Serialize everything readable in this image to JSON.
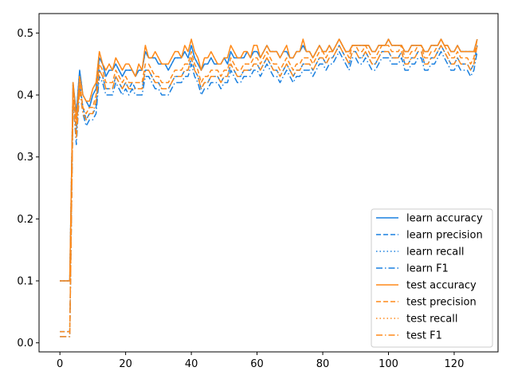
{
  "chart_data": {
    "type": "line",
    "title": "",
    "xlabel": "",
    "ylabel": "",
    "xlim": [
      -6.35,
      133.35
    ],
    "ylim": [
      -0.0146,
      0.5314
    ],
    "xticks": [
      0,
      20,
      40,
      60,
      80,
      100,
      120
    ],
    "yticks": [
      0.0,
      0.1,
      0.2,
      0.3,
      0.4,
      0.5
    ],
    "xtick_labels": [
      "0",
      "20",
      "40",
      "60",
      "80",
      "100",
      "120"
    ],
    "ytick_labels": [
      "0.0",
      "0.1",
      "0.2",
      "0.3",
      "0.4",
      "0.5"
    ],
    "grid": false,
    "legend_position": "lower-right",
    "colors": {
      "learn": "#1f77b4",
      "test": "#ff7f0e",
      "learn_display": "#1a80e0",
      "test_display": "#ff8a1a"
    },
    "series": [
      {
        "name": "learn accuracy",
        "group": "learn",
        "style": "solid",
        "values": [
          0.1,
          0.1,
          0.1,
          0.1,
          0.42,
          0.37,
          0.44,
          0.4,
          0.39,
          0.38,
          0.4,
          0.41,
          0.46,
          0.45,
          0.43,
          0.44,
          0.44,
          0.45,
          0.44,
          0.43,
          0.44,
          0.44,
          0.44,
          0.43,
          0.44,
          0.44,
          0.47,
          0.46,
          0.46,
          0.46,
          0.45,
          0.45,
          0.45,
          0.44,
          0.45,
          0.46,
          0.46,
          0.46,
          0.47,
          0.46,
          0.48,
          0.46,
          0.45,
          0.44,
          0.45,
          0.45,
          0.46,
          0.45,
          0.45,
          0.45,
          0.46,
          0.45,
          0.47,
          0.46,
          0.46,
          0.46,
          0.46,
          0.47,
          0.46,
          0.47,
          0.47,
          0.46,
          0.47,
          0.48,
          0.47,
          0.47,
          0.47,
          0.46,
          0.47,
          0.47,
          0.46,
          0.46,
          0.47,
          0.47,
          0.48,
          0.47,
          0.47,
          0.46,
          0.47,
          0.48,
          0.47,
          0.47,
          0.48,
          0.47,
          0.48,
          0.49,
          0.48,
          0.47,
          0.47,
          0.48,
          0.48,
          0.48,
          0.48,
          0.48,
          0.48,
          0.47,
          0.47,
          0.48,
          0.48,
          0.48,
          0.49,
          0.48,
          0.48,
          0.48,
          0.48,
          0.47,
          0.47,
          0.48,
          0.48,
          0.48,
          0.48,
          0.47,
          0.47,
          0.48,
          0.48,
          0.48,
          0.49,
          0.48,
          0.48,
          0.47,
          0.47,
          0.48,
          0.47,
          0.47,
          0.47,
          0.47,
          0.47,
          0.49
        ]
      },
      {
        "name": "learn precision",
        "group": "learn",
        "style": "dashed",
        "values": [
          0.018,
          0.018,
          0.018,
          0.018,
          0.4,
          0.34,
          0.42,
          0.38,
          0.36,
          0.37,
          0.37,
          0.38,
          0.44,
          0.43,
          0.41,
          0.41,
          0.41,
          0.43,
          0.42,
          0.41,
          0.42,
          0.41,
          0.42,
          0.41,
          0.41,
          0.41,
          0.44,
          0.44,
          0.43,
          0.42,
          0.42,
          0.41,
          0.41,
          0.41,
          0.42,
          0.43,
          0.43,
          0.43,
          0.44,
          0.44,
          0.46,
          0.44,
          0.43,
          0.41,
          0.42,
          0.42,
          0.43,
          0.43,
          0.43,
          0.42,
          0.43,
          0.43,
          0.45,
          0.44,
          0.43,
          0.43,
          0.44,
          0.44,
          0.44,
          0.45,
          0.45,
          0.44,
          0.45,
          0.46,
          0.45,
          0.44,
          0.44,
          0.43,
          0.44,
          0.45,
          0.44,
          0.43,
          0.44,
          0.44,
          0.45,
          0.45,
          0.45,
          0.44,
          0.45,
          0.46,
          0.46,
          0.45,
          0.46,
          0.46,
          0.47,
          0.48,
          0.47,
          0.46,
          0.45,
          0.47,
          0.47,
          0.46,
          0.46,
          0.47,
          0.46,
          0.45,
          0.45,
          0.46,
          0.47,
          0.47,
          0.47,
          0.46,
          0.46,
          0.46,
          0.47,
          0.45,
          0.45,
          0.46,
          0.46,
          0.47,
          0.47,
          0.45,
          0.45,
          0.46,
          0.46,
          0.47,
          0.48,
          0.47,
          0.46,
          0.45,
          0.45,
          0.46,
          0.45,
          0.45,
          0.45,
          0.44,
          0.45,
          0.48
        ]
      },
      {
        "name": "learn recall",
        "group": "learn",
        "style": "dotted",
        "values": [
          0.1,
          0.1,
          0.1,
          0.1,
          0.42,
          0.37,
          0.44,
          0.4,
          0.39,
          0.38,
          0.4,
          0.41,
          0.46,
          0.45,
          0.43,
          0.44,
          0.44,
          0.45,
          0.44,
          0.43,
          0.44,
          0.44,
          0.44,
          0.43,
          0.44,
          0.44,
          0.47,
          0.46,
          0.46,
          0.46,
          0.45,
          0.45,
          0.45,
          0.44,
          0.45,
          0.46,
          0.46,
          0.46,
          0.47,
          0.46,
          0.48,
          0.46,
          0.45,
          0.44,
          0.45,
          0.45,
          0.46,
          0.45,
          0.45,
          0.45,
          0.46,
          0.45,
          0.47,
          0.46,
          0.46,
          0.46,
          0.46,
          0.47,
          0.46,
          0.47,
          0.47,
          0.46,
          0.47,
          0.48,
          0.47,
          0.47,
          0.47,
          0.46,
          0.47,
          0.47,
          0.46,
          0.46,
          0.47,
          0.47,
          0.48,
          0.47,
          0.47,
          0.46,
          0.47,
          0.48,
          0.47,
          0.47,
          0.48,
          0.47,
          0.48,
          0.49,
          0.48,
          0.47,
          0.47,
          0.48,
          0.48,
          0.48,
          0.48,
          0.48,
          0.48,
          0.47,
          0.47,
          0.48,
          0.48,
          0.48,
          0.49,
          0.48,
          0.48,
          0.48,
          0.48,
          0.47,
          0.47,
          0.48,
          0.48,
          0.48,
          0.48,
          0.47,
          0.47,
          0.48,
          0.48,
          0.48,
          0.49,
          0.48,
          0.48,
          0.47,
          0.47,
          0.48,
          0.47,
          0.47,
          0.47,
          0.47,
          0.47,
          0.49
        ]
      },
      {
        "name": "learn F1",
        "group": "learn",
        "style": "dashdot",
        "values": [
          0.01,
          0.01,
          0.01,
          0.01,
          0.39,
          0.32,
          0.41,
          0.37,
          0.35,
          0.36,
          0.36,
          0.37,
          0.43,
          0.42,
          0.4,
          0.4,
          0.4,
          0.42,
          0.41,
          0.4,
          0.41,
          0.4,
          0.41,
          0.4,
          0.4,
          0.4,
          0.43,
          0.43,
          0.42,
          0.41,
          0.41,
          0.4,
          0.4,
          0.4,
          0.41,
          0.42,
          0.42,
          0.42,
          0.43,
          0.43,
          0.45,
          0.43,
          0.42,
          0.4,
          0.41,
          0.41,
          0.42,
          0.42,
          0.42,
          0.41,
          0.42,
          0.42,
          0.44,
          0.43,
          0.42,
          0.42,
          0.43,
          0.43,
          0.43,
          0.44,
          0.44,
          0.43,
          0.44,
          0.45,
          0.44,
          0.43,
          0.43,
          0.42,
          0.43,
          0.44,
          0.43,
          0.42,
          0.43,
          0.43,
          0.44,
          0.44,
          0.44,
          0.43,
          0.44,
          0.45,
          0.45,
          0.44,
          0.45,
          0.45,
          0.46,
          0.47,
          0.46,
          0.45,
          0.44,
          0.46,
          0.46,
          0.45,
          0.45,
          0.46,
          0.45,
          0.44,
          0.44,
          0.45,
          0.46,
          0.46,
          0.46,
          0.45,
          0.45,
          0.45,
          0.46,
          0.44,
          0.44,
          0.45,
          0.45,
          0.46,
          0.46,
          0.44,
          0.44,
          0.45,
          0.45,
          0.46,
          0.47,
          0.46,
          0.45,
          0.44,
          0.44,
          0.45,
          0.44,
          0.44,
          0.44,
          0.43,
          0.44,
          0.47
        ]
      },
      {
        "name": "test accuracy",
        "group": "test",
        "style": "solid",
        "values": [
          0.1,
          0.1,
          0.1,
          0.1,
          0.42,
          0.36,
          0.43,
          0.4,
          0.39,
          0.39,
          0.41,
          0.42,
          0.47,
          0.45,
          0.44,
          0.45,
          0.44,
          0.46,
          0.45,
          0.44,
          0.45,
          0.45,
          0.44,
          0.43,
          0.45,
          0.44,
          0.48,
          0.46,
          0.46,
          0.47,
          0.46,
          0.45,
          0.45,
          0.45,
          0.46,
          0.47,
          0.47,
          0.46,
          0.48,
          0.47,
          0.49,
          0.47,
          0.46,
          0.44,
          0.46,
          0.46,
          0.47,
          0.46,
          0.45,
          0.45,
          0.46,
          0.46,
          0.48,
          0.47,
          0.46,
          0.46,
          0.47,
          0.47,
          0.46,
          0.48,
          0.48,
          0.46,
          0.47,
          0.48,
          0.47,
          0.47,
          0.47,
          0.46,
          0.47,
          0.48,
          0.46,
          0.46,
          0.47,
          0.47,
          0.49,
          0.47,
          0.47,
          0.46,
          0.47,
          0.48,
          0.47,
          0.47,
          0.48,
          0.47,
          0.48,
          0.49,
          0.48,
          0.47,
          0.47,
          0.48,
          0.48,
          0.48,
          0.48,
          0.48,
          0.48,
          0.47,
          0.47,
          0.48,
          0.48,
          0.48,
          0.49,
          0.48,
          0.48,
          0.48,
          0.48,
          0.47,
          0.47,
          0.48,
          0.48,
          0.48,
          0.48,
          0.47,
          0.47,
          0.48,
          0.48,
          0.48,
          0.49,
          0.48,
          0.48,
          0.47,
          0.47,
          0.48,
          0.47,
          0.47,
          0.47,
          0.47,
          0.47,
          0.49
        ]
      },
      {
        "name": "test precision",
        "group": "test",
        "style": "dashed",
        "values": [
          0.018,
          0.018,
          0.018,
          0.018,
          0.4,
          0.35,
          0.42,
          0.38,
          0.37,
          0.38,
          0.38,
          0.4,
          0.45,
          0.44,
          0.42,
          0.42,
          0.42,
          0.44,
          0.43,
          0.42,
          0.43,
          0.42,
          0.42,
          0.42,
          0.42,
          0.42,
          0.45,
          0.45,
          0.44,
          0.43,
          0.43,
          0.42,
          0.42,
          0.42,
          0.43,
          0.44,
          0.44,
          0.44,
          0.45,
          0.45,
          0.47,
          0.45,
          0.44,
          0.42,
          0.43,
          0.43,
          0.44,
          0.44,
          0.44,
          0.43,
          0.44,
          0.44,
          0.46,
          0.45,
          0.44,
          0.44,
          0.45,
          0.45,
          0.45,
          0.46,
          0.46,
          0.45,
          0.46,
          0.47,
          0.46,
          0.45,
          0.45,
          0.44,
          0.45,
          0.46,
          0.45,
          0.44,
          0.45,
          0.45,
          0.46,
          0.46,
          0.46,
          0.45,
          0.46,
          0.47,
          0.47,
          0.46,
          0.47,
          0.47,
          0.48,
          0.49,
          0.48,
          0.47,
          0.46,
          0.48,
          0.48,
          0.47,
          0.47,
          0.48,
          0.47,
          0.46,
          0.46,
          0.47,
          0.48,
          0.48,
          0.48,
          0.47,
          0.47,
          0.47,
          0.48,
          0.46,
          0.46,
          0.47,
          0.47,
          0.48,
          0.48,
          0.46,
          0.46,
          0.47,
          0.47,
          0.48,
          0.49,
          0.48,
          0.47,
          0.46,
          0.46,
          0.47,
          0.46,
          0.46,
          0.46,
          0.45,
          0.46,
          0.49
        ]
      },
      {
        "name": "test recall",
        "group": "test",
        "style": "dotted",
        "values": [
          0.1,
          0.1,
          0.1,
          0.1,
          0.42,
          0.36,
          0.43,
          0.4,
          0.39,
          0.39,
          0.41,
          0.42,
          0.47,
          0.45,
          0.44,
          0.45,
          0.44,
          0.46,
          0.45,
          0.44,
          0.45,
          0.45,
          0.44,
          0.43,
          0.45,
          0.44,
          0.48,
          0.46,
          0.46,
          0.47,
          0.46,
          0.45,
          0.45,
          0.45,
          0.46,
          0.47,
          0.47,
          0.46,
          0.48,
          0.47,
          0.49,
          0.47,
          0.46,
          0.44,
          0.46,
          0.46,
          0.47,
          0.46,
          0.45,
          0.45,
          0.46,
          0.46,
          0.48,
          0.47,
          0.46,
          0.46,
          0.47,
          0.47,
          0.46,
          0.48,
          0.48,
          0.46,
          0.47,
          0.48,
          0.47,
          0.47,
          0.47,
          0.46,
          0.47,
          0.48,
          0.46,
          0.46,
          0.47,
          0.47,
          0.49,
          0.47,
          0.47,
          0.46,
          0.47,
          0.48,
          0.47,
          0.47,
          0.48,
          0.47,
          0.48,
          0.49,
          0.48,
          0.47,
          0.47,
          0.48,
          0.48,
          0.48,
          0.48,
          0.48,
          0.48,
          0.47,
          0.47,
          0.48,
          0.48,
          0.48,
          0.49,
          0.48,
          0.48,
          0.48,
          0.48,
          0.47,
          0.47,
          0.48,
          0.48,
          0.48,
          0.48,
          0.47,
          0.47,
          0.48,
          0.48,
          0.48,
          0.49,
          0.48,
          0.48,
          0.47,
          0.47,
          0.48,
          0.47,
          0.47,
          0.47,
          0.47,
          0.47,
          0.49
        ]
      },
      {
        "name": "test F1",
        "group": "test",
        "style": "dashdot",
        "values": [
          0.01,
          0.01,
          0.01,
          0.01,
          0.39,
          0.33,
          0.41,
          0.37,
          0.36,
          0.37,
          0.37,
          0.39,
          0.44,
          0.43,
          0.41,
          0.41,
          0.41,
          0.43,
          0.42,
          0.41,
          0.42,
          0.41,
          0.41,
          0.41,
          0.41,
          0.41,
          0.44,
          0.44,
          0.43,
          0.42,
          0.42,
          0.41,
          0.41,
          0.41,
          0.42,
          0.43,
          0.43,
          0.43,
          0.44,
          0.44,
          0.46,
          0.44,
          0.43,
          0.41,
          0.42,
          0.42,
          0.43,
          0.43,
          0.43,
          0.42,
          0.43,
          0.43,
          0.45,
          0.44,
          0.43,
          0.43,
          0.44,
          0.44,
          0.44,
          0.45,
          0.45,
          0.44,
          0.45,
          0.46,
          0.45,
          0.44,
          0.44,
          0.43,
          0.44,
          0.45,
          0.44,
          0.43,
          0.44,
          0.44,
          0.45,
          0.45,
          0.45,
          0.44,
          0.45,
          0.46,
          0.46,
          0.45,
          0.46,
          0.46,
          0.47,
          0.48,
          0.47,
          0.46,
          0.45,
          0.47,
          0.47,
          0.46,
          0.46,
          0.47,
          0.46,
          0.45,
          0.45,
          0.46,
          0.47,
          0.47,
          0.47,
          0.46,
          0.46,
          0.46,
          0.47,
          0.45,
          0.45,
          0.46,
          0.46,
          0.47,
          0.47,
          0.45,
          0.45,
          0.46,
          0.46,
          0.47,
          0.48,
          0.47,
          0.46,
          0.45,
          0.45,
          0.46,
          0.45,
          0.45,
          0.45,
          0.44,
          0.45,
          0.48
        ]
      }
    ]
  }
}
